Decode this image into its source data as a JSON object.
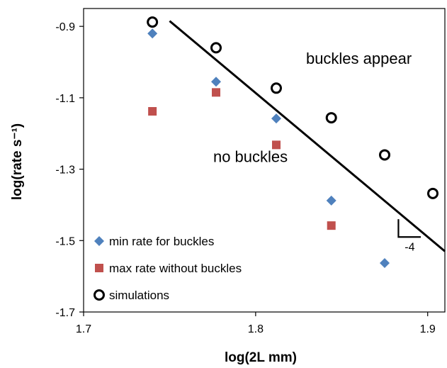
{
  "chart_data": {
    "type": "scatter",
    "xlabel": "log(2L mm)",
    "ylabel": "log(rate s⁻¹)",
    "xlim": [
      1.7,
      1.91
    ],
    "ylim": [
      -1.7,
      -0.85
    ],
    "x_ticks": [
      1.7,
      1.8,
      1.9
    ],
    "x_tick_labels": [
      "1.7",
      "1.8",
      "1.9"
    ],
    "y_ticks": [
      -0.9,
      -1.1,
      -1.3,
      -1.5,
      -1.7
    ],
    "y_tick_labels": [
      "-0.9",
      "-1.1",
      "-1.3",
      "-1.5",
      "-1.7"
    ],
    "grid": false,
    "legend_position": "bottom-left",
    "series": [
      {
        "name": "min rate for buckles",
        "marker": "diamond",
        "color": "#4f81bd",
        "points": [
          [
            1.74,
            -0.92
          ],
          [
            1.777,
            -1.055
          ],
          [
            1.812,
            -1.158
          ],
          [
            1.844,
            -1.388
          ],
          [
            1.875,
            -1.563
          ]
        ]
      },
      {
        "name": "max rate without buckles",
        "marker": "square",
        "color": "#c0504d",
        "points": [
          [
            1.74,
            -1.138
          ],
          [
            1.777,
            -1.085
          ],
          [
            1.812,
            -1.232
          ],
          [
            1.844,
            -1.458
          ]
        ]
      },
      {
        "name": "simulations",
        "marker": "open-circle",
        "color": "#000000",
        "points": [
          [
            1.74,
            -0.888
          ],
          [
            1.777,
            -0.96
          ],
          [
            1.812,
            -1.073
          ],
          [
            1.844,
            -1.156
          ],
          [
            1.875,
            -1.26
          ],
          [
            1.903,
            -1.368
          ]
        ]
      }
    ],
    "fit_line": {
      "from": [
        1.75,
        -0.885
      ],
      "to": [
        1.91,
        -1.53
      ],
      "color": "#000000"
    },
    "slope_triangle": {
      "label": "-4",
      "vertices": [
        [
          1.883,
          -1.44
        ],
        [
          1.883,
          -1.49
        ],
        [
          1.896,
          -1.49
        ]
      ]
    },
    "annotations": [
      {
        "text": "buckles appear",
        "at": [
          1.86,
          -1.005
        ]
      },
      {
        "text": "no buckles",
        "at": [
          1.797,
          -1.28
        ]
      }
    ]
  }
}
